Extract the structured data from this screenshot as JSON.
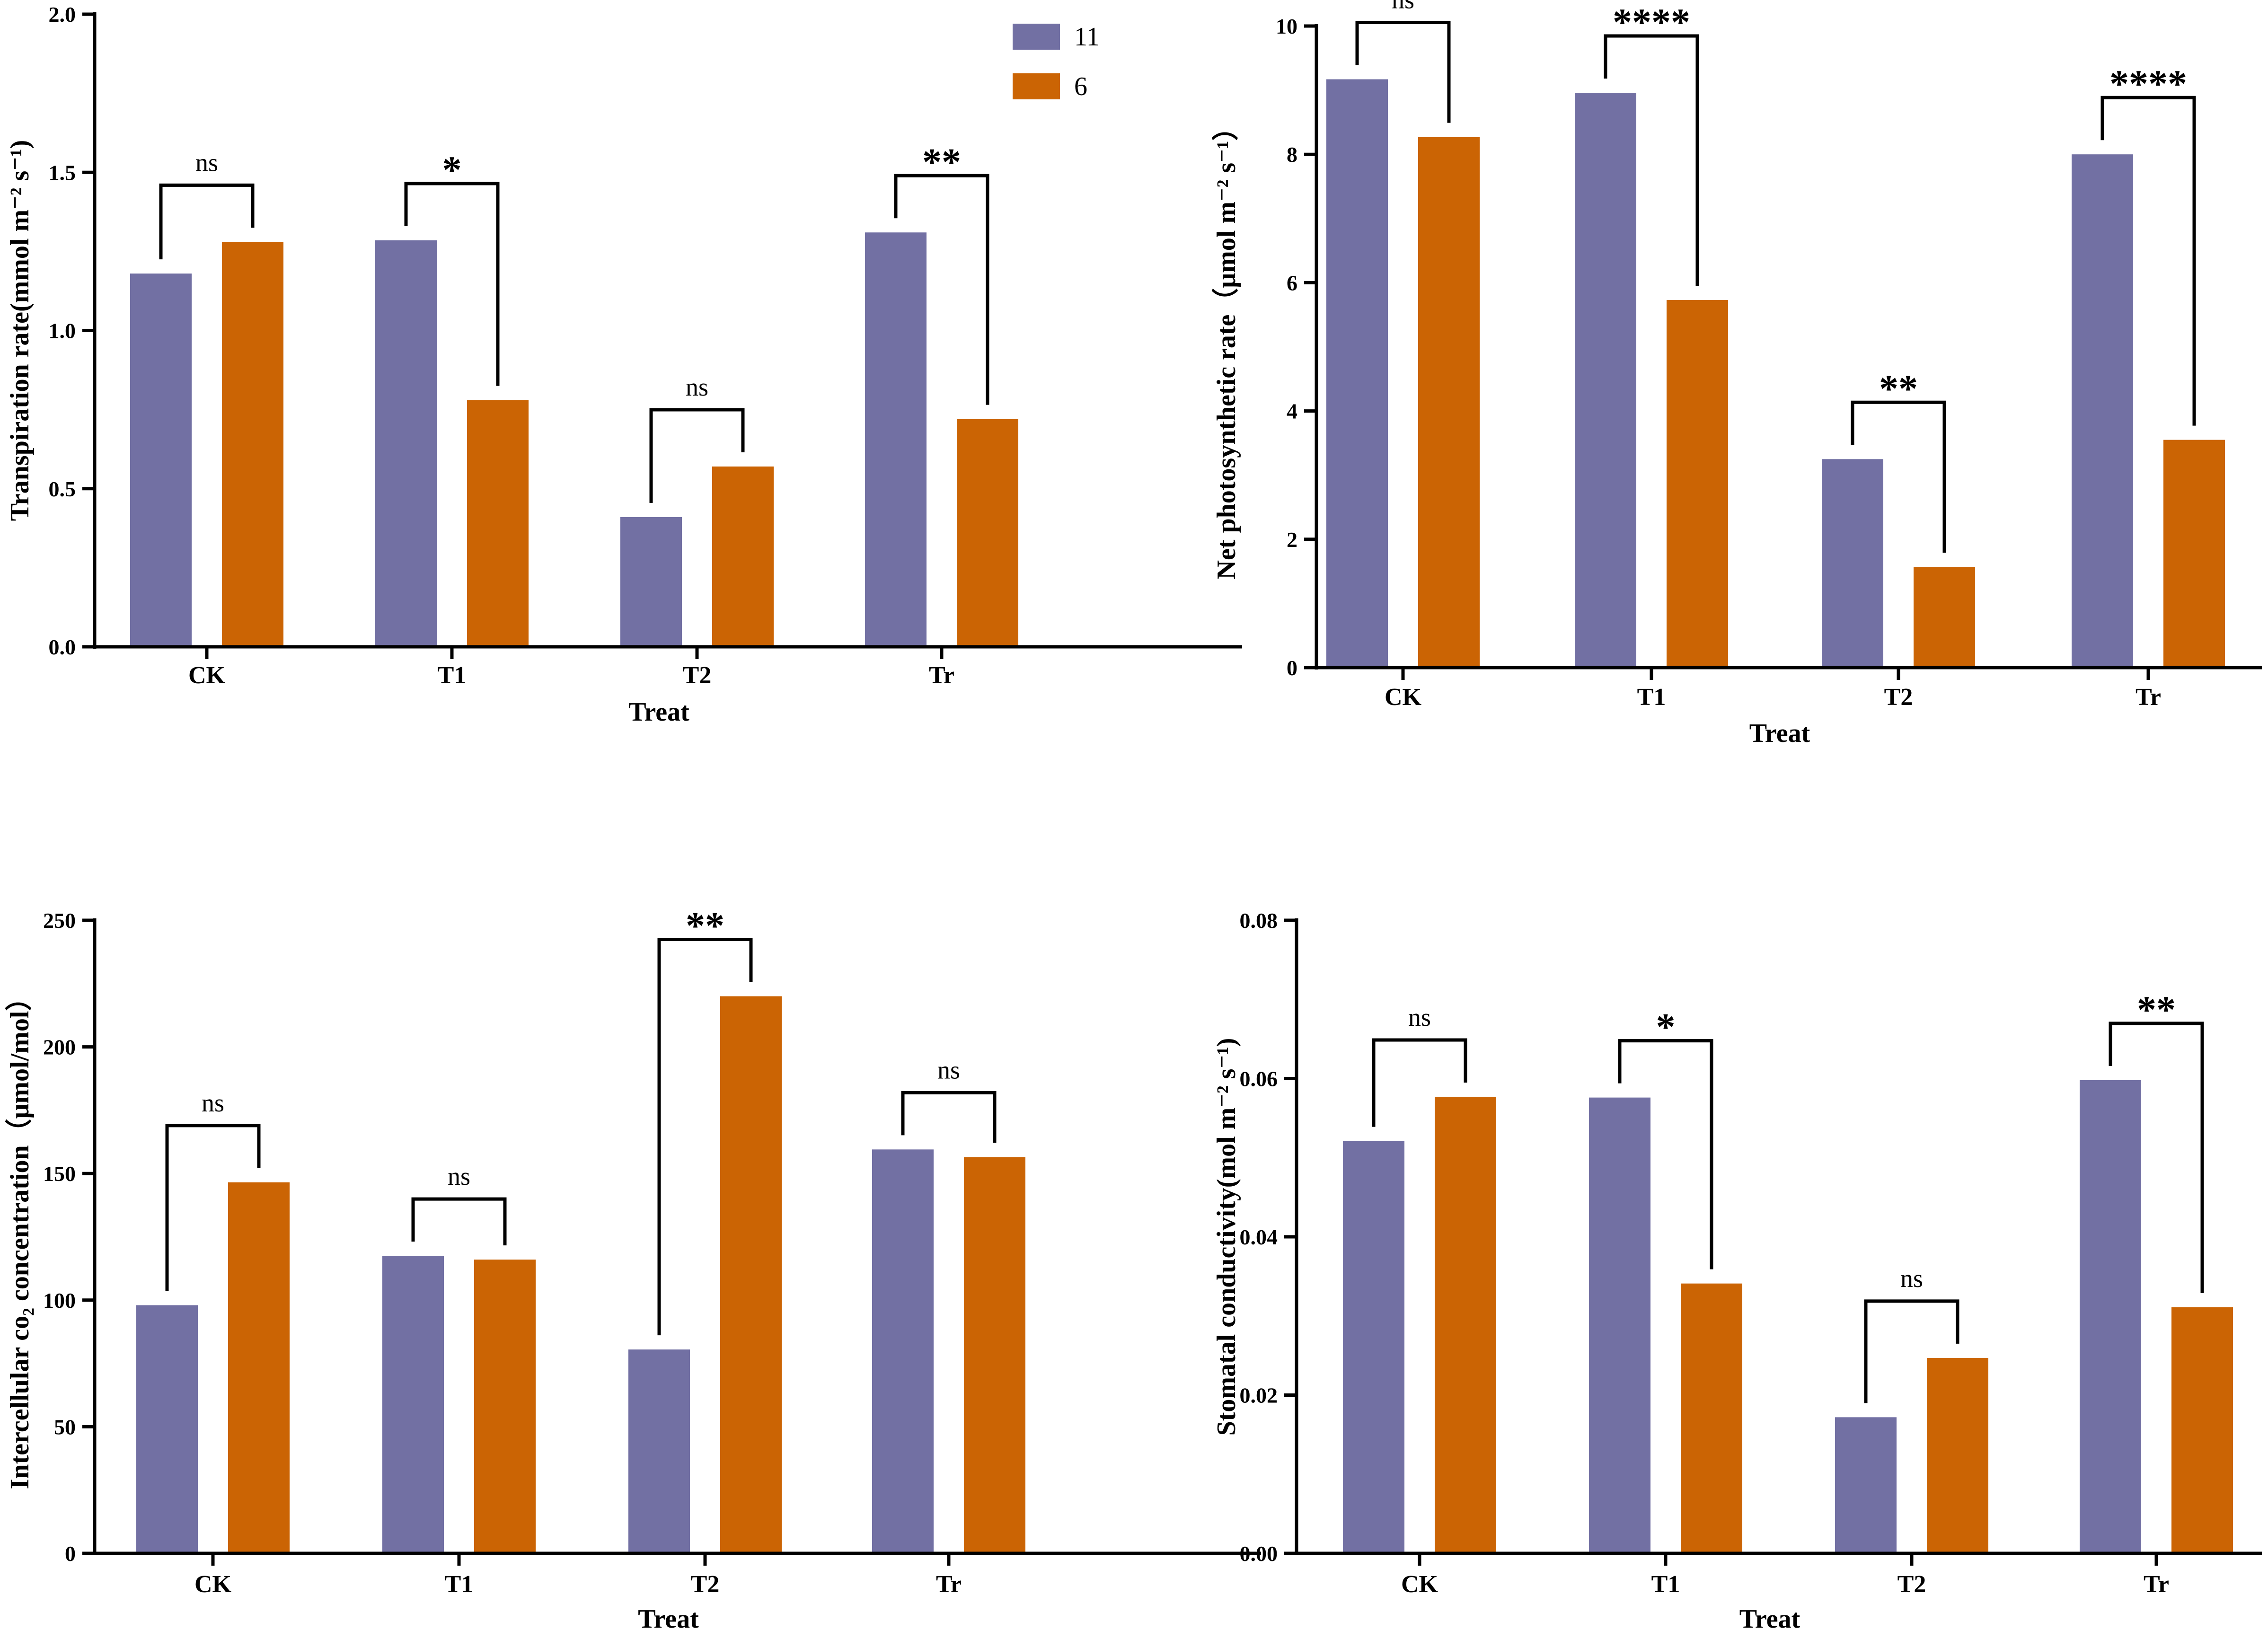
{
  "colors": {
    "series_11": "#7270a3",
    "series_6": "#cb6404"
  },
  "legend": [
    {
      "name": "11",
      "color": "#7270a3"
    },
    {
      "name": "6",
      "color": "#cb6404"
    }
  ],
  "chart_data": [
    {
      "type": "bar",
      "title": "",
      "categories": [
        "CK",
        "T1",
        "T2",
        "Tr"
      ],
      "series": [
        {
          "name": "11",
          "values": [
            1.18,
            1.285,
            0.41,
            1.31
          ]
        },
        {
          "name": "6",
          "values": [
            1.28,
            0.78,
            0.57,
            0.72
          ]
        }
      ],
      "xlabel": "Treat",
      "ylabel": "Transpiration rate(mmol m⁻² s⁻¹)",
      "ylim": [
        0,
        2.0
      ],
      "yticks": [
        "0.0",
        "0.5",
        "1.0",
        "1.5",
        "2.0"
      ],
      "significance": [
        "ns",
        "*",
        "ns",
        "**"
      ],
      "legend": "top-right"
    },
    {
      "type": "bar",
      "title": "",
      "categories": [
        "CK",
        "T1",
        "T2",
        "Tr"
      ],
      "series": [
        {
          "name": "11",
          "values": [
            9.17,
            8.96,
            3.25,
            8.0
          ]
        },
        {
          "name": "6",
          "values": [
            8.27,
            5.73,
            1.57,
            3.55
          ]
        }
      ],
      "xlabel": "Treat",
      "ylabel": "Net photosynthetic rate（μmol m⁻² s⁻¹）",
      "ylim": [
        0,
        10
      ],
      "yticks": [
        "0",
        "2",
        "4",
        "6",
        "8",
        "10"
      ],
      "significance": [
        "ns",
        "****",
        "**",
        "****"
      ]
    },
    {
      "type": "bar",
      "title": "",
      "categories": [
        "CK",
        "T1",
        "T2",
        "Tr"
      ],
      "series": [
        {
          "name": "11",
          "values": [
            98,
            117.5,
            80.5,
            159.5
          ]
        },
        {
          "name": "6",
          "values": [
            146.5,
            116,
            220,
            156.5
          ]
        }
      ],
      "xlabel": "Treat",
      "ylabel": "Intercellular co₂ concentration（μmol/mol）",
      "ylim": [
        0,
        250
      ],
      "yticks": [
        "0",
        "50",
        "100",
        "150",
        "200",
        "250"
      ],
      "significance": [
        "ns",
        "ns",
        "**",
        "ns"
      ]
    },
    {
      "type": "bar",
      "title": "",
      "categories": [
        "CK",
        "T1",
        "T2",
        "Tr"
      ],
      "series": [
        {
          "name": "11",
          "values": [
            0.0521,
            0.0576,
            0.0172,
            0.0598
          ]
        },
        {
          "name": "6",
          "values": [
            0.0577,
            0.0341,
            0.0247,
            0.0311
          ]
        }
      ],
      "xlabel": "Treat",
      "ylabel": "Stomatal conductivity(mol m⁻² s⁻¹)",
      "ylim": [
        0,
        0.08
      ],
      "yticks": [
        "0.00",
        "0.02",
        "0.04",
        "0.06",
        "0.08"
      ],
      "significance": [
        "ns",
        "*",
        "ns",
        "**"
      ]
    }
  ]
}
